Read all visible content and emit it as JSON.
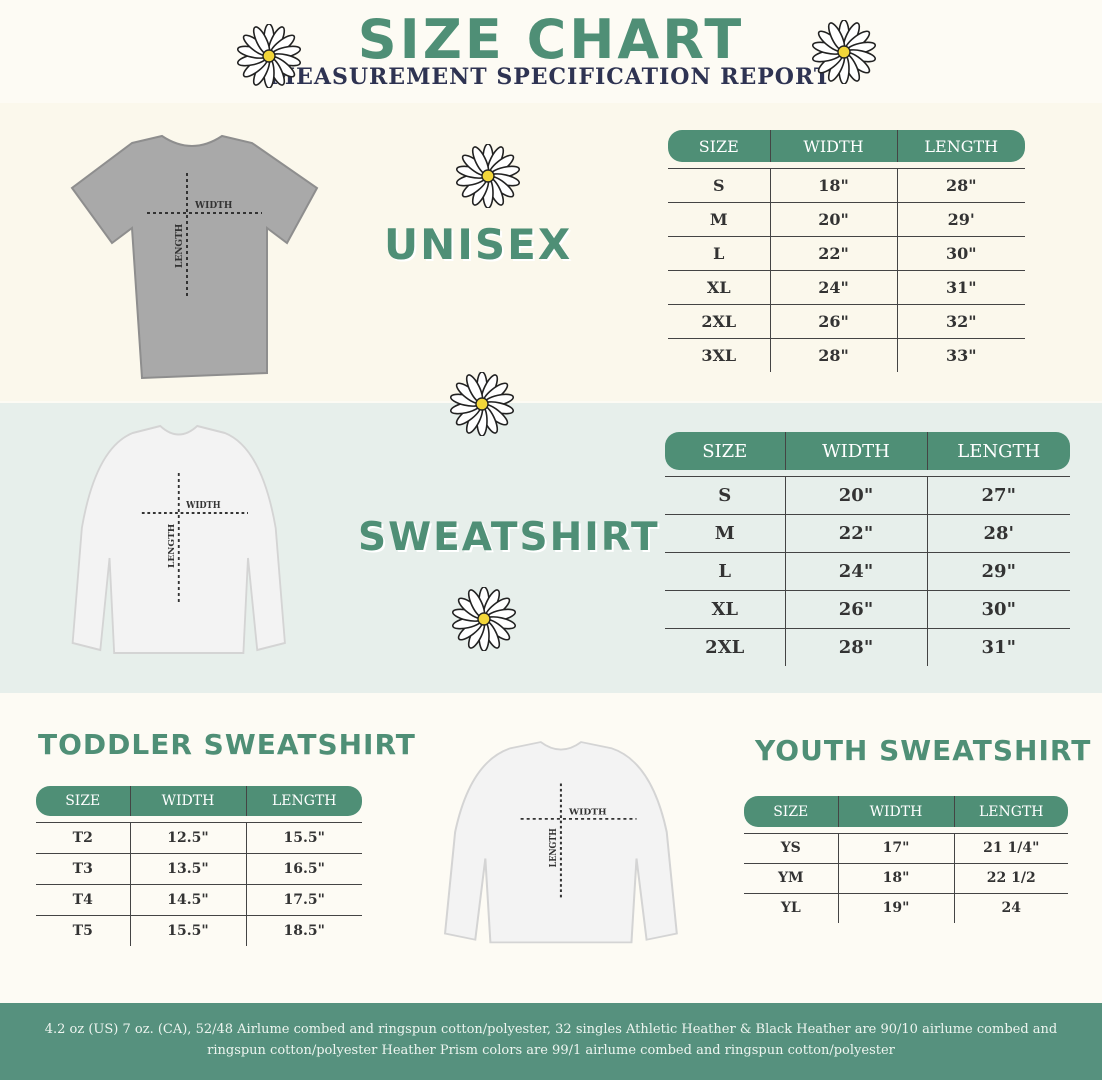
{
  "header": {
    "title": "SIZE CHART",
    "subtitle": "MEASUREMENT SPECIFICATION REPORT"
  },
  "colors": {
    "accent": "#4f8f76",
    "navy": "#2e3352",
    "mint_bg": "#e7efeb",
    "cream_bg": "#fbf8ec"
  },
  "garment_labels": {
    "width": "WIDTH",
    "length": "LENGTH"
  },
  "unisex": {
    "title": "UNISEX",
    "headers": [
      "SIZE",
      "WIDTH",
      "LENGTH"
    ],
    "rows": [
      [
        "S",
        "18\"",
        "28\""
      ],
      [
        "M",
        "20\"",
        "29'"
      ],
      [
        "L",
        "22\"",
        "30\""
      ],
      [
        "XL",
        "24\"",
        "31\""
      ],
      [
        "2XL",
        "26\"",
        "32\""
      ],
      [
        "3XL",
        "28\"",
        "33\""
      ]
    ]
  },
  "sweatshirt": {
    "title": "SWEATSHIRT",
    "headers": [
      "SIZE",
      "WIDTH",
      "LENGTH"
    ],
    "rows": [
      [
        "S",
        "20\"",
        "27\""
      ],
      [
        "M",
        "22\"",
        "28'"
      ],
      [
        "L",
        "24\"",
        "29\""
      ],
      [
        "XL",
        "26\"",
        "30\""
      ],
      [
        "2XL",
        "28\"",
        "31\""
      ]
    ]
  },
  "toddler": {
    "title": "TODDLER SWEATSHIRT",
    "headers": [
      "SIZE",
      "WIDTH",
      "LENGTH"
    ],
    "rows": [
      [
        "T2",
        "12.5\"",
        "15.5\""
      ],
      [
        "T3",
        "13.5\"",
        "16.5\""
      ],
      [
        "T4",
        "14.5\"",
        "17.5\""
      ],
      [
        "T5",
        "15.5\"",
        "18.5\""
      ]
    ]
  },
  "youth": {
    "title": "YOUTH SWEATSHIRT",
    "headers": [
      "SIZE",
      "WIDTH",
      "LENGTH"
    ],
    "rows": [
      [
        "YS",
        "17\"",
        "21 1/4\""
      ],
      [
        "YM",
        "18\"",
        "22 1/2"
      ],
      [
        "YL",
        "19\"",
        "24"
      ]
    ]
  },
  "footer": {
    "text": "4.2 oz (US) 7 oz. (CA), 52/48 Airlume combed and ringspun cotton/polyester, 32 singles Athletic Heather & Black Heather are 90/10 airlume combed and ringspun cotton/polyester Heather Prism colors are 99/1 airlume combed and ringspun cotton/polyester"
  }
}
